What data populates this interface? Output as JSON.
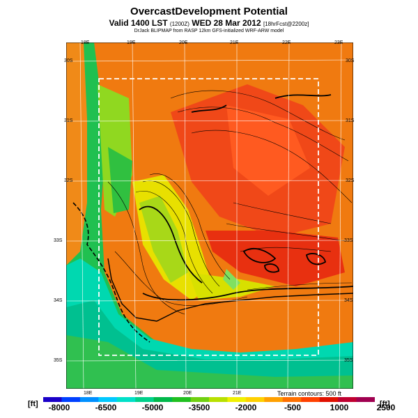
{
  "header": {
    "title": "OvercastDevelopment Potential",
    "valid_line": "Valid 1400 LST",
    "valid_code": "(1200Z)",
    "valid_date": "WED 28 Mar 2012",
    "forecast_tag": "[18hrFcst@2200z]",
    "credit": "DrJack BLIPMAP from RASP 12km GFS-initialized WRF-ARW model"
  },
  "map": {
    "lon_labels_top": [
      "18E",
      "19E",
      "20E",
      "21E",
      "22E",
      "23E"
    ],
    "lon_labels_bottom": [
      "18E",
      "19E",
      "20E",
      "21E"
    ],
    "lat_labels_left": [
      "30S",
      "31S",
      "32S",
      "33S",
      "34S",
      "35S"
    ],
    "lat_labels_right": [
      "30S",
      "31S",
      "32S",
      "33S",
      "34S",
      "35S"
    ],
    "terrain_note": "Terrain contours: 500 ft"
  },
  "colorbar": {
    "unit_left": "[ft]",
    "unit_right": "[ft]",
    "ticks": [
      "-8000",
      "-6500",
      "-5000",
      "-3500",
      "-2000",
      "-500",
      "1000",
      "2500"
    ],
    "colors": [
      "#1a00c8",
      "#0040ff",
      "#0090ff",
      "#00c8ff",
      "#00e0c8",
      "#00d08a",
      "#00b84a",
      "#20c020",
      "#70d010",
      "#b8e000",
      "#f0f000",
      "#ffd000",
      "#ffa000",
      "#ff7000",
      "#ff4000",
      "#e01000",
      "#c00030",
      "#a00050"
    ]
  }
}
